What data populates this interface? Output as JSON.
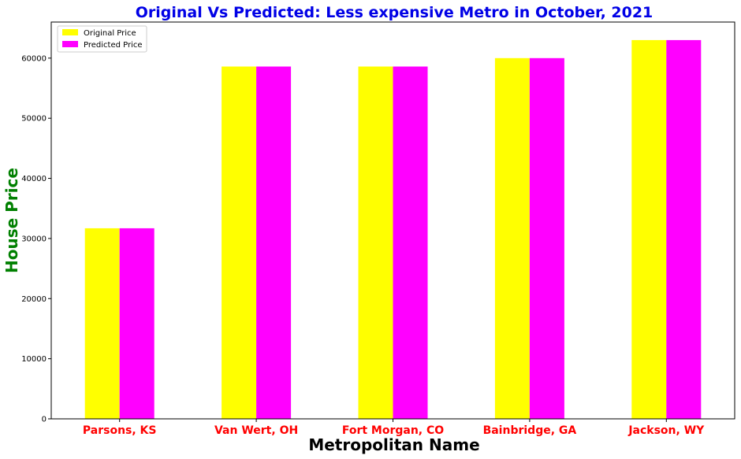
{
  "chart_data": {
    "type": "bar",
    "title": "Original Vs Predicted: Less expensive Metro in October, 2021",
    "xlabel": "Metropolitan Name",
    "ylabel": "House Price",
    "categories": [
      "Parsons, KS",
      "Van Wert, OH",
      "Fort Morgan, CO",
      "Bainbridge, GA",
      "Jackson, WY"
    ],
    "series": [
      {
        "name": "Original Price",
        "color": "#ffff00",
        "values": [
          31700,
          58600,
          58600,
          60000,
          63000
        ]
      },
      {
        "name": "Predicted Price",
        "color": "#ff00ff",
        "values": [
          31700,
          58600,
          58600,
          60000,
          63000
        ]
      }
    ],
    "ylim": [
      0,
      66000
    ],
    "yticks": [
      0,
      10000,
      20000,
      30000,
      40000,
      50000,
      60000
    ],
    "ytick_labels": [
      "0",
      "10000",
      "20000",
      "30000",
      "40000",
      "50000",
      "60000"
    ],
    "grid": false,
    "legend_position": "top-left",
    "colors": {
      "title": "#0000e6",
      "xlabel": "#000000",
      "ylabel": "#008000",
      "xtick": "#ff0000"
    }
  }
}
